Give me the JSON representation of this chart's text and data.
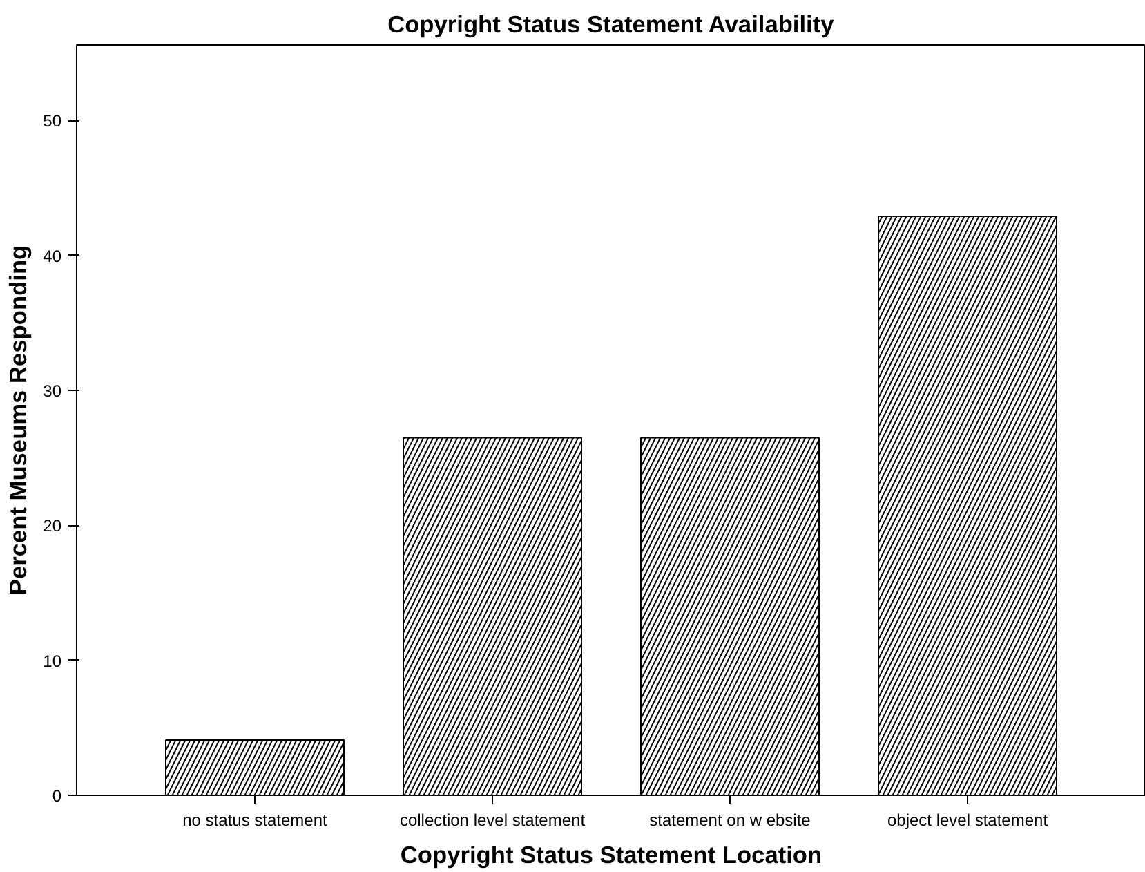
{
  "chart_data": {
    "type": "bar",
    "title": "Copyright Status Statement Availability",
    "xlabel": "Copyright Status Statement Location",
    "ylabel": "Percent Museums Responding",
    "categories": [
      "no status statement",
      "collection level statement",
      "statement on w ebsite",
      "object level statement"
    ],
    "values": [
      4.1,
      26.5,
      26.5,
      42.9
    ],
    "color": "#ffffff",
    "ylim": [
      0,
      55.6
    ],
    "yticks": [
      0,
      10,
      20,
      30,
      40,
      50
    ],
    "grid": false
  }
}
